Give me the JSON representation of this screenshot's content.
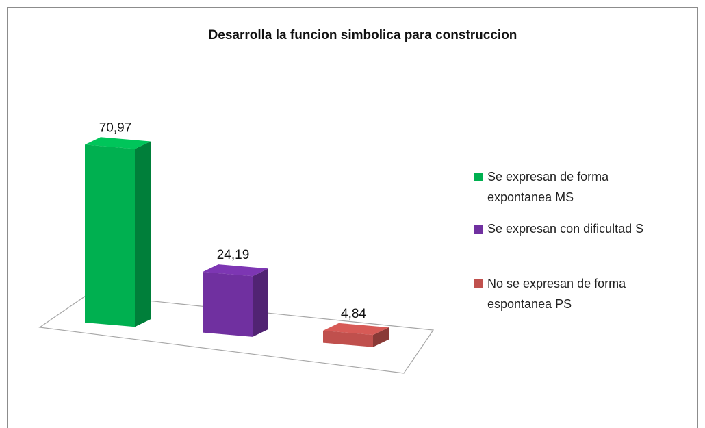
{
  "chart_data": {
    "type": "bar",
    "title": "Desarrolla la funcion simbolica para construccion",
    "series": [
      {
        "name": "Se expresan de forma expontanea MS",
        "color": "#00b050",
        "values": [
          70.97
        ],
        "value_labels": [
          "70,97"
        ]
      },
      {
        "name": "Se expresan con dificultad S",
        "color": "#7030a0",
        "values": [
          24.19
        ],
        "value_labels": [
          "24,19"
        ]
      },
      {
        "name": "No se expresan de forma espontanea PS",
        "color": "#c0504d",
        "values": [
          4.84
        ],
        "value_labels": [
          "4,84"
        ]
      }
    ],
    "legend": "right"
  }
}
